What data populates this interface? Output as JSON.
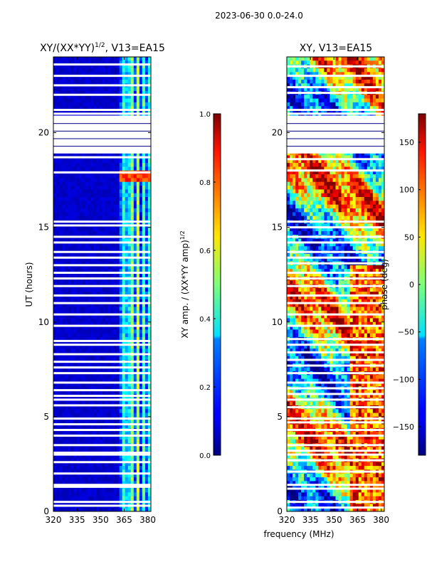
{
  "figure": {
    "suptitle": "2023-06-30 0.0-24.0",
    "xlabel": "frequency (MHz)"
  },
  "chart_data": [
    {
      "type": "heatmap",
      "title_main": "XY/(XX*YY)",
      "title_sup": "1/2",
      "title_rest": ", V13=EA15",
      "ylabel": "UT (hours)",
      "xlim": [
        320,
        382
      ],
      "ylim": [
        0,
        24
      ],
      "xticks": [
        320,
        335,
        350,
        365,
        380
      ],
      "yticks": [
        0,
        5,
        10,
        15,
        20
      ],
      "colorbar": {
        "label_main": "XY amp. / (XX*YY amp)",
        "label_sup": "1/2",
        "range": [
          0.0,
          1.0
        ],
        "ticks": [
          "0.0",
          "0.2",
          "0.4",
          "0.6",
          "0.8",
          "1.0"
        ],
        "colormap": "jet"
      },
      "description_levels": {
        "background": 0.05,
        "high_band_start_mhz": 362,
        "high_band_peak": 0.55
      },
      "flagged_hours": [
        0.3,
        0.5,
        1.3,
        1.4,
        2.0,
        2.6,
        3.0,
        3.1,
        3.5,
        4.0,
        4.3,
        4.6,
        4.9,
        5.6,
        5.9,
        6.1,
        6.4,
        6.8,
        7.3,
        7.6,
        7.9,
        8.3,
        8.8,
        9.0,
        9.8,
        10.4,
        11.0,
        11.4,
        11.9,
        12.3,
        12.6,
        13.0,
        13.4,
        13.7,
        14.2,
        14.5,
        15.1,
        15.3,
        17.9,
        18.7,
        19.4,
        20.0,
        20.5,
        20.8,
        21.0,
        21.2,
        22.0,
        22.5,
        23.0,
        23.6
      ]
    },
    {
      "type": "heatmap",
      "title": "XY, V13=EA15",
      "xlim": [
        320,
        382
      ],
      "ylim": [
        0,
        24
      ],
      "xticks": [
        320,
        335,
        350,
        365,
        380
      ],
      "yticks": [
        0,
        5,
        10,
        15,
        20
      ],
      "colorbar": {
        "label": "phase (deg)",
        "range": [
          -180,
          180
        ],
        "ticks": [
          "−150",
          "−100",
          "−50",
          "0",
          "50",
          "100",
          "150"
        ],
        "tick_values": [
          -150,
          -100,
          -50,
          0,
          50,
          100,
          150
        ],
        "colormap": "jet"
      },
      "flagged_hours": [
        0.2,
        0.5,
        1.2,
        1.4,
        2.1,
        2.7,
        3.0,
        3.2,
        3.5,
        4.0,
        4.3,
        4.7,
        4.9,
        5.5,
        5.9,
        6.2,
        6.5,
        6.8,
        7.3,
        7.7,
        8.0,
        8.4,
        8.8,
        9.1,
        9.8,
        10.4,
        11.0,
        11.4,
        11.9,
        12.3,
        12.6,
        13.1,
        13.4,
        13.7,
        14.2,
        14.5,
        15.0,
        15.3,
        18.0,
        18.6,
        19.3,
        19.9,
        20.4,
        20.8,
        21.0,
        21.2,
        22.1,
        22.4,
        23.0,
        23.5
      ]
    }
  ]
}
